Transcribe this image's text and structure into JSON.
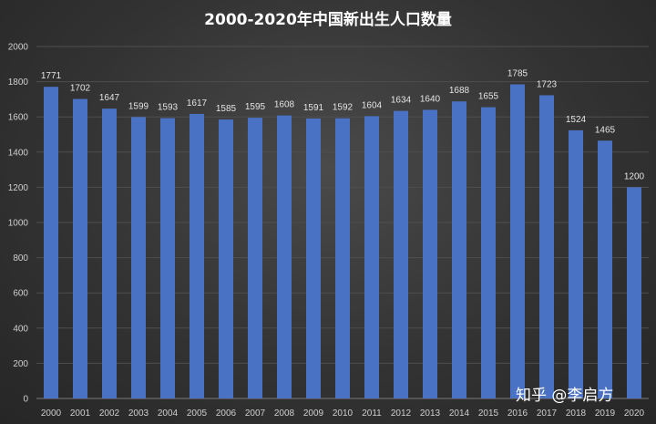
{
  "chart_data": {
    "type": "bar",
    "title": "2000-2020年中国新出生人口数量",
    "categories": [
      "2000",
      "2001",
      "2002",
      "2003",
      "2004",
      "2005",
      "2006",
      "2007",
      "2008",
      "2009",
      "2010",
      "2011",
      "2012",
      "2013",
      "2014",
      "2015",
      "2016",
      "2017",
      "2018",
      "2019",
      "2020"
    ],
    "values": [
      1771,
      1702,
      1647,
      1599,
      1593,
      1617,
      1585,
      1595,
      1608,
      1591,
      1592,
      1604,
      1634,
      1640,
      1688,
      1655,
      1785,
      1723,
      1524,
      1465,
      1200
    ],
    "ylim": [
      0,
      2000
    ],
    "yticks": [
      0,
      200,
      400,
      600,
      800,
      1000,
      1200,
      1400,
      1600,
      1800,
      2000
    ],
    "grid": true,
    "bar_color": "#4a72c4",
    "background_color": "#333333"
  },
  "watermark": "知乎 @李启方"
}
